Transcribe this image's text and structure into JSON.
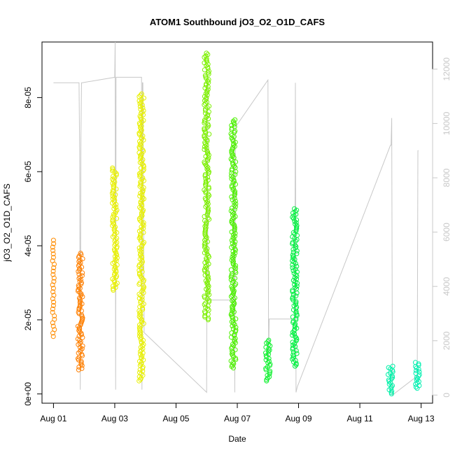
{
  "chart_data": {
    "type": "scatter",
    "title": "ATOM1 Southbound jO3_O2_O1D_CAFS",
    "xlabel": "Date",
    "ylabel": "jO3_O2_O1D_CAFS",
    "x_axis_type": "date",
    "x_ticks": [
      "Aug 01",
      "Aug 03",
      "Aug 05",
      "Aug 07",
      "Aug 09",
      "Aug 11",
      "Aug 13"
    ],
    "x_range": [
      "2016-07-31T15:00",
      "2016-08-13T09:00"
    ],
    "y_ticks": [
      "0e+00",
      "2e-05",
      "4e-05",
      "6e-05",
      "8e-05"
    ],
    "y_tick_values": [
      0,
      2e-05,
      4e-05,
      6e-05,
      8e-05
    ],
    "ylim": [
      -2.5e-06,
      9.5e-05
    ],
    "y2_ticks": [
      "0",
      "2000",
      "4000",
      "6000",
      "8000",
      "10000",
      "12000"
    ],
    "y2_tick_values": [
      0,
      2000,
      4000,
      6000,
      8000,
      10000,
      12000
    ],
    "y2lim": [
      -300,
      13000
    ],
    "y2_color": "#c8c8c8",
    "grid": false,
    "legend": "none",
    "point_clusters": [
      {
        "t": "2016-08-01T00:00",
        "ymin": 1.55e-05,
        "ymax": 4.15e-05,
        "color": "#ff8c00",
        "dense": false
      },
      {
        "t": "2016-08-01T21:00",
        "ymin": 6.5e-06,
        "ymax": 3.8e-05,
        "color": "#ff7f00",
        "dense": true
      },
      {
        "t": "2016-08-03T00:00",
        "ymin": 2.8e-05,
        "ymax": 6.1e-05,
        "color": "#e8f000",
        "dense": true
      },
      {
        "t": "2016-08-03T21:00",
        "ymin": 3.5e-06,
        "ymax": 8.1e-05,
        "color": "#e8f000",
        "dense": true
      },
      {
        "t": "2016-08-06T00:00",
        "ymin": 2e-05,
        "ymax": 9.2e-05,
        "color": "#7cf000",
        "dense": true
      },
      {
        "t": "2016-08-06T21:00",
        "ymin": 7e-06,
        "ymax": 7.4e-05,
        "color": "#4cf000",
        "dense": true
      },
      {
        "t": "2016-08-08T00:00",
        "ymin": 3.5e-06,
        "ymax": 1.45e-05,
        "color": "#10f030",
        "dense": true
      },
      {
        "t": "2016-08-08T21:00",
        "ymin": 7.5e-06,
        "ymax": 5e-05,
        "color": "#00f040",
        "dense": true
      },
      {
        "t": "2016-08-12T00:00",
        "ymin": 0.0,
        "ymax": 7.5e-06,
        "color": "#00f0a8",
        "dense": true
      },
      {
        "t": "2016-08-12T21:00",
        "ymin": 1.5e-06,
        "ymax": 8.5e-06,
        "color": "#00f0b0",
        "dense": true
      }
    ],
    "altitude_series": {
      "axis": "right",
      "color": "#c8c8c8",
      "points": [
        [
          "2016-08-01T00:00",
          11500
        ],
        [
          "2016-08-01T20:00",
          11500
        ],
        [
          "2016-08-01T20:30",
          9000
        ],
        [
          "2016-08-01T21:00",
          200
        ],
        [
          "2016-08-01T21:30",
          9500
        ],
        [
          "2016-08-01T22:00",
          11500
        ],
        [
          "2016-08-01T22:30",
          11500
        ],
        [
          "2016-08-03T00:00",
          11700
        ],
        [
          "2016-08-03T00:20",
          13000
        ],
        [
          "2016-08-03T00:40",
          200
        ],
        [
          "2016-08-03T01:00",
          11700
        ],
        [
          "2016-08-03T20:00",
          11700
        ],
        [
          "2016-08-03T21:00",
          11700
        ],
        [
          "2016-08-03T21:20",
          200
        ],
        [
          "2016-08-03T21:40",
          11500
        ],
        [
          "2016-08-03T22:00",
          11500
        ],
        [
          "2016-08-03T23:00",
          2300
        ],
        [
          "2016-08-06T00:00",
          100
        ],
        [
          "2016-08-06T00:30",
          11500
        ],
        [
          "2016-08-06T01:00",
          3500
        ],
        [
          "2016-08-06T21:00",
          3500
        ],
        [
          "2016-08-06T21:30",
          9500
        ],
        [
          "2016-08-06T22:00",
          100
        ],
        [
          "2016-08-06T22:30",
          9900
        ],
        [
          "2016-08-06T23:00",
          9900
        ],
        [
          "2016-08-08T00:00",
          11600
        ],
        [
          "2016-08-08T00:30",
          1400
        ],
        [
          "2016-08-08T01:00",
          2800
        ],
        [
          "2016-08-08T21:00",
          2800
        ],
        [
          "2016-08-08T21:30",
          11500
        ],
        [
          "2016-08-08T22:00",
          100
        ],
        [
          "2016-08-08T23:00",
          300
        ],
        [
          "2016-08-12T00:00",
          9200
        ],
        [
          "2016-08-12T00:30",
          9200
        ],
        [
          "2016-08-12T01:00",
          10200
        ],
        [
          "2016-08-12T01:30",
          0
        ],
        [
          "2016-08-12T21:00",
          700
        ],
        [
          "2016-08-12T21:30",
          9000
        ],
        [
          "2016-08-12T22:00",
          9000
        ]
      ]
    }
  }
}
